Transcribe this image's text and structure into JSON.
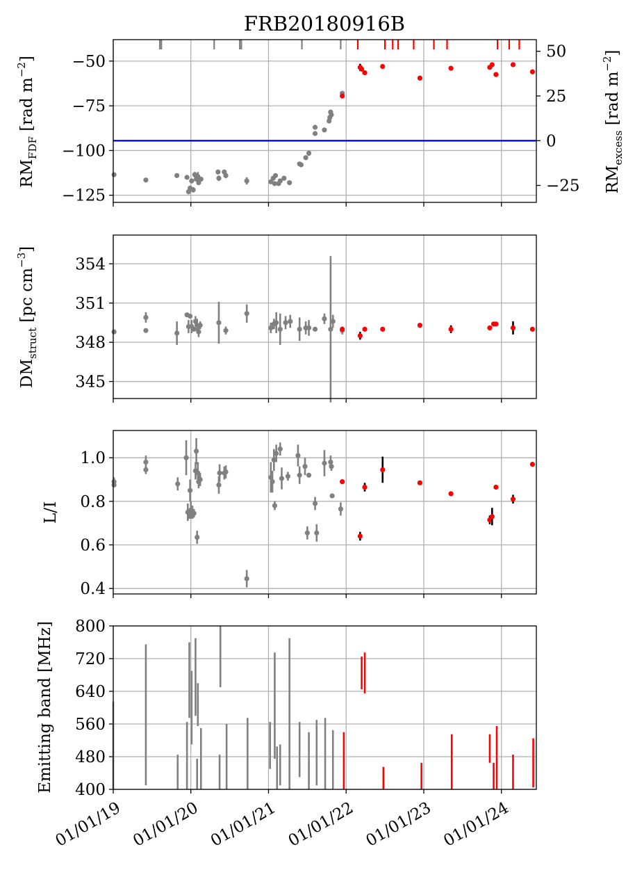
{
  "title": "FRB20180916B",
  "x_tick_labels": [
    "01/01/19",
    "01/01/20",
    "01/01/21",
    "01/01/22",
    "01/01/23",
    "01/01/24"
  ],
  "colors": {
    "before": "#808080",
    "after": "#ff0000",
    "err_after": "#000000",
    "rm_line": "#0000ff",
    "grid": "#b0b0b0"
  },
  "chart_data": [
    {
      "type": "scatter",
      "panel": "rm",
      "ylabel_main": "RM",
      "ylabel_sub": "FDF",
      "ylabel_unit": " [rad m",
      "ylabel_exp": "−2",
      "ylabel_end": "]",
      "y2label_main": "RM",
      "y2label_sub": "excess",
      "y2label_unit": " [rad m",
      "y2label_exp": "−2",
      "y2label_end": "]",
      "xlim": [
        2019.0,
        2024.45
      ],
      "ylim": [
        -129,
        -38
      ],
      "yticks": [
        -50,
        -75,
        -100,
        -125
      ],
      "ytick_labels": [
        "−50",
        "−75",
        "−100",
        "−125"
      ],
      "y2ticks": [
        50,
        25,
        0,
        -25
      ],
      "y2tick_labels": [
        "50",
        "25",
        "0",
        "−25"
      ],
      "y2_zero_at": -94.5,
      "reference_line": -94.5,
      "rug_before": [
        2019.6,
        2019.62,
        2020.3,
        2020.63,
        2020.65,
        2021.43,
        2021.93
      ],
      "rug_after": [
        2022.15,
        2022.5,
        2022.6,
        2022.67,
        2022.87,
        2023.13,
        2023.3,
        2023.95,
        2024.1,
        2024.23
      ],
      "points_before": [
        [
          2019.01,
          -113.5,
          0
        ],
        [
          2019.42,
          -116.5,
          0
        ],
        [
          2019.82,
          -114,
          0
        ],
        [
          2019.95,
          -115,
          0
        ],
        [
          2019.97,
          -123,
          1.5
        ],
        [
          2019.99,
          -121,
          0
        ],
        [
          2020.01,
          -117,
          0
        ],
        [
          2020.03,
          -122,
          1.5
        ],
        [
          2020.05,
          -113.5,
          1.5
        ],
        [
          2020.07,
          -116,
          0
        ],
        [
          2020.09,
          -114.5,
          2.5
        ],
        [
          2020.1,
          -118,
          0
        ],
        [
          2020.13,
          -116,
          0
        ],
        [
          2020.35,
          -112,
          0
        ],
        [
          2020.36,
          -115.5,
          1.5
        ],
        [
          2020.43,
          -112,
          0
        ],
        [
          2020.45,
          -114,
          1.5
        ],
        [
          2020.72,
          -117,
          2
        ],
        [
          2021.03,
          -117.5,
          1
        ],
        [
          2021.06,
          -115.5,
          0
        ],
        [
          2021.08,
          -118.5,
          0
        ],
        [
          2021.09,
          -114,
          0
        ],
        [
          2021.13,
          -118.5,
          0
        ],
        [
          2021.15,
          -117,
          0
        ],
        [
          2021.2,
          -115.5,
          0
        ],
        [
          2021.27,
          -118,
          0
        ],
        [
          2021.4,
          -107.5,
          0
        ],
        [
          2021.42,
          -108,
          0
        ],
        [
          2021.48,
          -104,
          0
        ],
        [
          2021.52,
          -101.5,
          1.5
        ],
        [
          2021.6,
          -87,
          0
        ],
        [
          2021.6,
          -90.5,
          0
        ],
        [
          2021.72,
          -88.5,
          0
        ],
        [
          2021.78,
          -83.5,
          0
        ],
        [
          2021.79,
          -81.5,
          0
        ],
        [
          2021.8,
          -78.5,
          0
        ],
        [
          2021.81,
          -80,
          0
        ],
        [
          2021.95,
          -68,
          0
        ]
      ],
      "points_after": [
        [
          2021.95,
          -69.5,
          0
        ],
        [
          2022.18,
          -53.5,
          2
        ],
        [
          2022.2,
          -54.5,
          0
        ],
        [
          2022.24,
          -56.5,
          0
        ],
        [
          2022.47,
          -53,
          0
        ],
        [
          2022.95,
          -59.5,
          0
        ],
        [
          2023.35,
          -54,
          0
        ],
        [
          2023.85,
          -53.5,
          0
        ],
        [
          2023.88,
          -52,
          0
        ],
        [
          2023.93,
          -57.5,
          0
        ],
        [
          2024.15,
          -52,
          0
        ],
        [
          2024.4,
          -56,
          0
        ]
      ]
    },
    {
      "type": "scatter",
      "panel": "dm",
      "ylabel_main": "DM",
      "ylabel_sub": "struct",
      "ylabel_unit": " [pc cm",
      "ylabel_exp": "−3",
      "ylabel_end": "]",
      "xlim": [
        2019.0,
        2024.45
      ],
      "ylim": [
        343.7,
        356.2
      ],
      "yticks": [
        354,
        351,
        348,
        345
      ],
      "ytick_labels": [
        "354",
        "351",
        "348",
        "345"
      ],
      "points_before": [
        [
          2019.01,
          348.8,
          0
        ],
        [
          2019.42,
          349.9,
          0.4
        ],
        [
          2019.42,
          348.9,
          0
        ],
        [
          2019.82,
          348.7,
          0.9
        ],
        [
          2019.95,
          350.1,
          0
        ],
        [
          2019.97,
          349.2,
          0.5
        ],
        [
          2019.99,
          350,
          0
        ],
        [
          2020.01,
          349.2,
          0.5
        ],
        [
          2020.04,
          349,
          0
        ],
        [
          2020.06,
          349.6,
          0.4
        ],
        [
          2020.08,
          349.3,
          0.5
        ],
        [
          2020.1,
          348.8,
          0.4
        ],
        [
          2020.12,
          349.3,
          0.3
        ],
        [
          2020.36,
          349.5,
          1.6
        ],
        [
          2020.45,
          348.9,
          0.3
        ],
        [
          2020.72,
          350.2,
          0.7
        ],
        [
          2021.03,
          349.1,
          0.4
        ],
        [
          2021.07,
          349.4,
          0.4
        ],
        [
          2021.1,
          349.5,
          0.8
        ],
        [
          2021.15,
          349,
          1.2
        ],
        [
          2021.22,
          349.5,
          0.5
        ],
        [
          2021.28,
          349.6,
          0.5
        ],
        [
          2021.4,
          349,
          0.9
        ],
        [
          2021.48,
          349.1,
          0.5
        ],
        [
          2021.52,
          349.1,
          0.6
        ],
        [
          2021.6,
          349,
          0
        ],
        [
          2021.72,
          349.8,
          0.4
        ],
        [
          2021.8,
          349,
          5.6
        ],
        [
          2021.83,
          349.6,
          0.5
        ],
        [
          2021.95,
          348.9,
          0.3
        ]
      ],
      "points_after": [
        [
          2021.95,
          349,
          0
        ],
        [
          2022.18,
          348.5,
          0.3
        ],
        [
          2022.24,
          349,
          0
        ],
        [
          2022.47,
          349,
          0
        ],
        [
          2022.95,
          349.3,
          0
        ],
        [
          2023.35,
          349,
          0.3
        ],
        [
          2023.85,
          349.1,
          0
        ],
        [
          2023.9,
          349.4,
          0
        ],
        [
          2023.93,
          349.4,
          0
        ],
        [
          2024.15,
          349.1,
          0.5
        ],
        [
          2024.4,
          349,
          0
        ]
      ]
    },
    {
      "type": "scatter",
      "panel": "li",
      "ylabel": "L/I",
      "xlim": [
        2019.0,
        2024.45
      ],
      "ylim": [
        0.375,
        1.125
      ],
      "yticks": [
        1.0,
        0.8,
        0.6,
        0.4
      ],
      "ytick_labels": [
        "1.0",
        "0.8",
        "0.6",
        "0.4"
      ],
      "points_before": [
        [
          2019.01,
          0.89,
          0.02
        ],
        [
          2019.01,
          0.875,
          0
        ],
        [
          2019.42,
          0.98,
          0.03
        ],
        [
          2019.42,
          0.945,
          0.02
        ],
        [
          2019.83,
          0.88,
          0.03
        ],
        [
          2019.94,
          1.0,
          0.08
        ],
        [
          2019.96,
          0.75,
          0.04
        ],
        [
          2019.98,
          0.74,
          0.02
        ],
        [
          2019.99,
          0.85,
          0.05
        ],
        [
          2020.0,
          0.76,
          0.04
        ],
        [
          2020.02,
          0.75,
          0.03
        ],
        [
          2020.04,
          0.745,
          0.02
        ],
        [
          2020.06,
          0.94,
          0.04
        ],
        [
          2020.07,
          1.03,
          0.06
        ],
        [
          2020.08,
          0.635,
          0.03
        ],
        [
          2020.09,
          0.93,
          0.05
        ],
        [
          2020.1,
          0.89,
          0.03
        ],
        [
          2020.12,
          0.9,
          0.03
        ],
        [
          2020.36,
          0.875,
          0.04
        ],
        [
          2020.37,
          0.93,
          0.04
        ],
        [
          2020.43,
          0.93,
          0.03
        ],
        [
          2020.45,
          0.935,
          0.03
        ],
        [
          2020.72,
          0.445,
          0.04
        ],
        [
          2021.03,
          0.91,
          0.07
        ],
        [
          2021.05,
          0.89,
          0.05
        ],
        [
          2021.07,
          0.99,
          0.05
        ],
        [
          2021.08,
          0.78,
          0.02
        ],
        [
          2021.1,
          1.02,
          0.04
        ],
        [
          2021.15,
          1.04,
          0.03
        ],
        [
          2021.17,
          0.905,
          0.05
        ],
        [
          2021.25,
          0.915,
          0.02
        ],
        [
          2021.38,
          1.01,
          0.05
        ],
        [
          2021.4,
          0.92,
          0.04
        ],
        [
          2021.47,
          0.96,
          0.04
        ],
        [
          2021.5,
          0.655,
          0.03
        ],
        [
          2021.52,
          0.92,
          0
        ],
        [
          2021.6,
          0.79,
          0.03
        ],
        [
          2021.62,
          0.655,
          0.04
        ],
        [
          2021.72,
          0.975,
          0.06
        ],
        [
          2021.8,
          0.98,
          0.03
        ],
        [
          2021.81,
          0.96,
          0.02
        ],
        [
          2021.82,
          0.825,
          0
        ],
        [
          2021.93,
          0.765,
          0.03
        ]
      ],
      "points_after": [
        [
          2021.95,
          0.89,
          0
        ],
        [
          2022.18,
          0.64,
          0.02
        ],
        [
          2022.24,
          0.865,
          0.02
        ],
        [
          2022.47,
          0.945,
          0.06
        ],
        [
          2022.95,
          0.885,
          0
        ],
        [
          2023.35,
          0.835,
          0
        ],
        [
          2023.85,
          0.715,
          0.02
        ],
        [
          2023.88,
          0.73,
          0.04
        ],
        [
          2023.93,
          0.865,
          0
        ],
        [
          2024.15,
          0.81,
          0.02
        ],
        [
          2024.4,
          0.97,
          0
        ]
      ]
    },
    {
      "type": "range",
      "panel": "band",
      "ylabel": "Emitting band [MHz]",
      "xlim": [
        2019.0,
        2024.45
      ],
      "ylim": [
        400,
        800
      ],
      "yticks": [
        800,
        720,
        640,
        560,
        480,
        400
      ],
      "ytick_labels": [
        "800",
        "720",
        "640",
        "560",
        "480",
        "400"
      ],
      "bars_before": [
        [
          2019.0,
          400,
          615
        ],
        [
          2019.42,
          410,
          755
        ],
        [
          2019.83,
          400,
          485
        ],
        [
          2019.95,
          400,
          565
        ],
        [
          2019.98,
          575,
          760
        ],
        [
          2020.01,
          510,
          690
        ],
        [
          2020.06,
          580,
          770
        ],
        [
          2020.08,
          400,
          475
        ],
        [
          2020.09,
          555,
          660
        ],
        [
          2020.13,
          400,
          550
        ],
        [
          2020.37,
          400,
          485
        ],
        [
          2020.38,
          650,
          800
        ],
        [
          2020.46,
          400,
          560
        ],
        [
          2020.73,
          400,
          575
        ],
        [
          2021.02,
          450,
          565
        ],
        [
          2021.08,
          475,
          735
        ],
        [
          2021.11,
          400,
          505
        ],
        [
          2021.15,
          410,
          510
        ],
        [
          2021.27,
          400,
          770
        ],
        [
          2021.4,
          430,
          565
        ],
        [
          2021.52,
          400,
          540
        ],
        [
          2021.62,
          410,
          570
        ],
        [
          2021.73,
          400,
          575
        ],
        [
          2021.83,
          400,
          545
        ]
      ],
      "bars_after": [
        [
          2021.97,
          400,
          540
        ],
        [
          2022.2,
          645,
          725
        ],
        [
          2022.24,
          635,
          735
        ],
        [
          2022.48,
          400,
          455
        ],
        [
          2022.97,
          400,
          465
        ],
        [
          2023.36,
          400,
          535
        ],
        [
          2023.85,
          465,
          535
        ],
        [
          2023.9,
          400,
          465
        ],
        [
          2023.94,
          400,
          555
        ],
        [
          2024.15,
          400,
          485
        ],
        [
          2024.41,
          405,
          525
        ]
      ]
    }
  ]
}
